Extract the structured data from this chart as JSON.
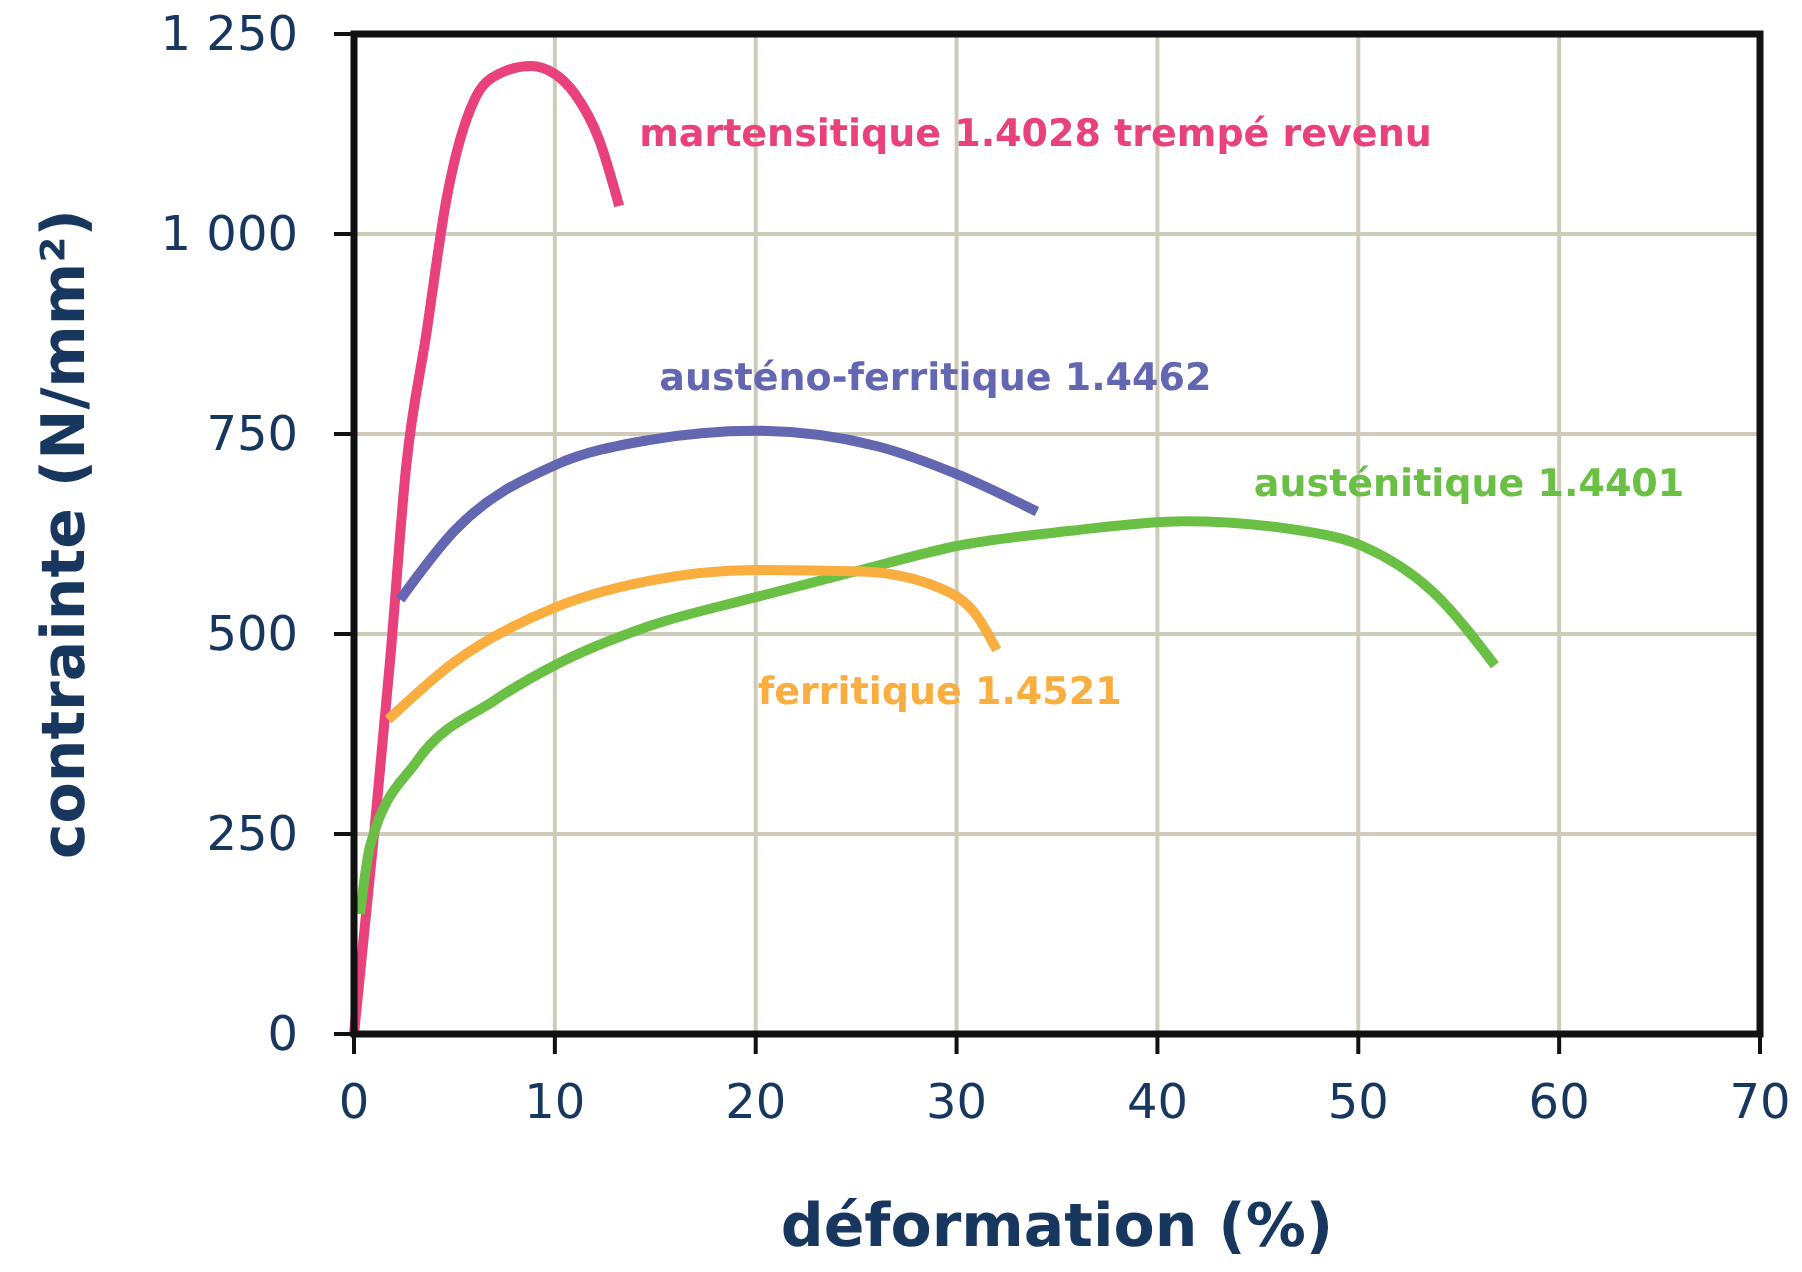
{
  "chart_data": {
    "type": "line",
    "xlabel": "déformation (%)",
    "ylabel": "contrainte (N/mm²)",
    "xlim": [
      0,
      70
    ],
    "ylim": [
      0,
      1250
    ],
    "xticks": [
      0,
      10,
      20,
      30,
      40,
      50,
      60,
      70
    ],
    "yticks": [
      0,
      250,
      500,
      750,
      {
        "value": 1000,
        "label": "1 000"
      },
      {
        "value": 1250,
        "label": "1 250"
      }
    ],
    "grid": true,
    "legend": false,
    "marker": "none",
    "line_style": "solid",
    "series": [
      {
        "name": "martensitique 1.4028 trempé revenu",
        "color": "#e8417c",
        "x": [
          0,
          1,
          1.8,
          2.6,
          3.6,
          4.6,
          6,
          7.2,
          8.8,
          10,
          11,
          12.2,
          13.2
        ],
        "values": [
          0,
          250,
          468,
          710,
          875,
          1043,
          1168,
          1200,
          1210,
          1200,
          1175,
          1118,
          1035
        ]
      },
      {
        "name": "austéno-ferritique 1.4462",
        "color": "#6366b0",
        "x": [
          2.3,
          5,
          10,
          14.6,
          20,
          26,
          29.9,
          34
        ],
        "values": [
          543,
          629,
          711,
          742,
          754,
          735,
          701,
          653
        ]
      },
      {
        "name": "austénitique 1.4401",
        "color": "#6abf45",
        "x": [
          0.3,
          0.8,
          3.1,
          7,
          10,
          14.6,
          20,
          26,
          30,
          35.7,
          41.3,
          47.2,
          50.2,
          53.7,
          56.8
        ],
        "values": [
          150,
          235,
          340,
          417,
          461,
          509,
          546,
          585,
          610,
          629,
          641,
          629,
          610,
          553,
          461
        ]
      },
      {
        "name": "ferritique 1.4521",
        "color": "#f9ae3f",
        "x": [
          1.7,
          5,
          10,
          14.6,
          20,
          25.3,
          29.2,
          31,
          32
        ],
        "values": [
          393,
          465,
          533,
          566,
          580,
          578,
          557,
          523,
          480
        ]
      }
    ]
  }
}
